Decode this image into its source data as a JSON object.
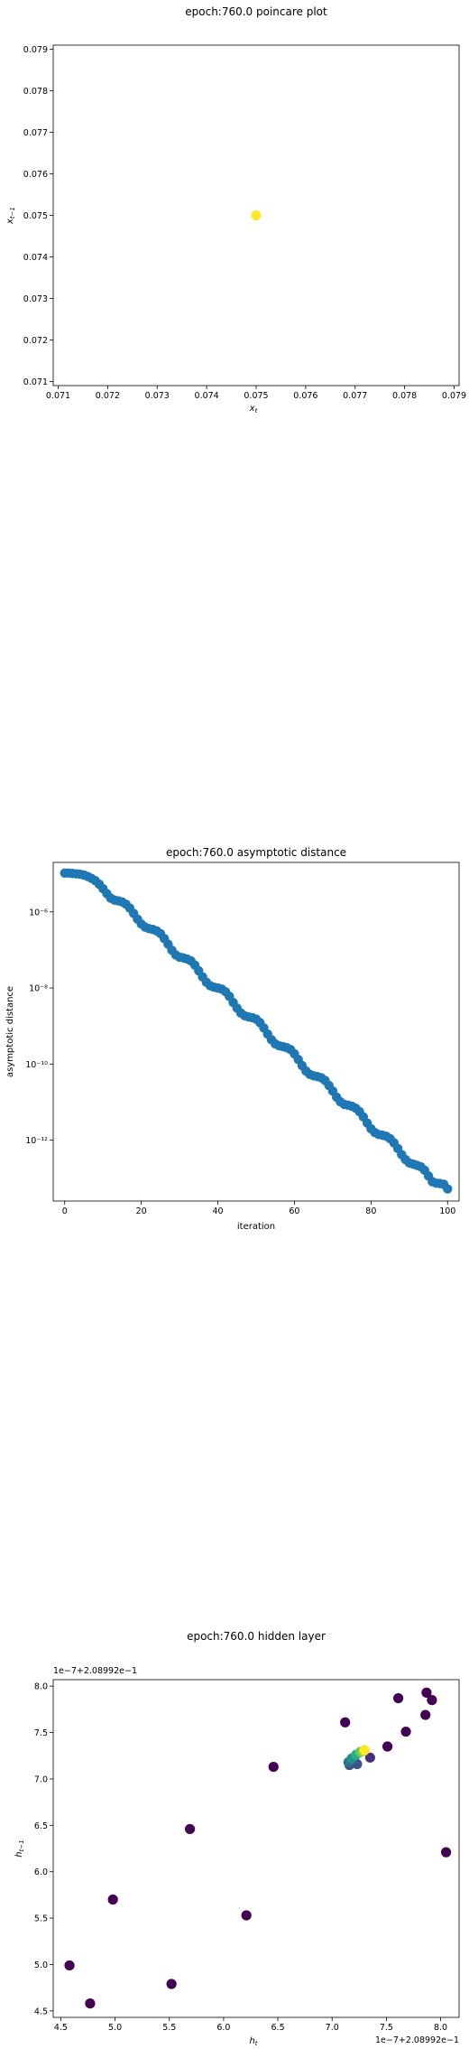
{
  "chart_data": [
    {
      "type": "scatter",
      "title": "epoch:760.0 poincare plot",
      "xlabel_base": "x",
      "xlabel_sub": "t",
      "ylabel_base": "x",
      "ylabel_sub": "t−1",
      "xlim": [
        0.0709,
        0.0791
      ],
      "ylim": [
        0.0709,
        0.0791
      ],
      "xticks": [
        "0.071",
        "0.072",
        "0.073",
        "0.074",
        "0.075",
        "0.076",
        "0.077",
        "0.078",
        "0.079"
      ],
      "yticks": [
        "0.071",
        "0.072",
        "0.073",
        "0.074",
        "0.075",
        "0.076",
        "0.077",
        "0.078",
        "0.079"
      ],
      "points": [
        {
          "x": 0.075,
          "y": 0.075
        }
      ],
      "color": "#fde725"
    },
    {
      "type": "scatter",
      "title": "epoch:760.0 asymptotic distance",
      "xlabel": "iteration",
      "ylabel": "asymptotic distance",
      "scale_y": "log",
      "xlim": [
        -3,
        103
      ],
      "ylim_log10": [
        -13.6,
        -4.7
      ],
      "xticks": [
        "0",
        "20",
        "40",
        "60",
        "80",
        "100"
      ],
      "yticks": [
        "10⁻⁶",
        "10⁻⁸",
        "10⁻¹⁰",
        "10⁻¹²"
      ],
      "color": "#1f77b4",
      "log10_values": [
        -4.98,
        -4.98,
        -4.99,
        -5.0,
        -5.01,
        -5.03,
        -5.07,
        -5.12,
        -5.18,
        -5.27,
        -5.39,
        -5.52,
        -5.64,
        -5.69,
        -5.71,
        -5.74,
        -5.8,
        -5.9,
        -6.04,
        -6.19,
        -6.32,
        -6.4,
        -6.44,
        -6.46,
        -6.5,
        -6.57,
        -6.7,
        -6.85,
        -7.01,
        -7.13,
        -7.19,
        -7.21,
        -7.24,
        -7.29,
        -7.4,
        -7.55,
        -7.71,
        -7.85,
        -7.94,
        -7.98,
        -8.0,
        -8.03,
        -8.1,
        -8.22,
        -8.38,
        -8.53,
        -8.66,
        -8.73,
        -8.76,
        -8.78,
        -8.82,
        -8.91,
        -9.05,
        -9.21,
        -9.36,
        -9.47,
        -9.52,
        -9.54,
        -9.57,
        -9.62,
        -9.73,
        -9.88,
        -10.04,
        -10.18,
        -10.27,
        -10.31,
        -10.33,
        -10.36,
        -10.43,
        -10.56,
        -10.71,
        -10.87,
        -10.99,
        -11.06,
        -11.08,
        -11.11,
        -11.16,
        -11.25,
        -11.39,
        -11.55,
        -11.7,
        -11.8,
        -11.85,
        -11.87,
        -11.9,
        -11.96,
        -12.07,
        -12.22,
        -12.38,
        -12.51,
        -12.6,
        -12.63,
        -12.66,
        -12.7,
        -12.79,
        -12.94,
        -13.09,
        -13.13,
        -13.14,
        -13.16,
        -13.28
      ]
    },
    {
      "type": "scatter",
      "title": "epoch:760.0 hidden layer",
      "xlabel_base": "h",
      "xlabel_sub": "t",
      "ylabel_base": "h",
      "ylabel_sub": "t−1",
      "offset_text_x": "1e−7+2.08992e−1",
      "offset_text_y": "1e−7+2.08992e−1",
      "xlim": [
        4.43,
        8.17
      ],
      "ylim": [
        4.43,
        8.07
      ],
      "xticks": [
        "4.5",
        "5.0",
        "5.5",
        "6.0",
        "6.5",
        "7.0",
        "7.5",
        "8.0"
      ],
      "yticks": [
        "4.5",
        "5.0",
        "5.5",
        "6.0",
        "6.5",
        "7.0",
        "7.5",
        "8.0"
      ],
      "points": [
        {
          "x": 4.58,
          "y": 4.99,
          "c": "#440154"
        },
        {
          "x": 4.77,
          "y": 4.58,
          "c": "#440154"
        },
        {
          "x": 4.98,
          "y": 5.7,
          "c": "#440154"
        },
        {
          "x": 5.52,
          "y": 4.79,
          "c": "#440154"
        },
        {
          "x": 5.69,
          "y": 6.46,
          "c": "#440154"
        },
        {
          "x": 6.21,
          "y": 5.53,
          "c": "#440154"
        },
        {
          "x": 6.46,
          "y": 7.13,
          "c": "#440154"
        },
        {
          "x": 7.12,
          "y": 7.61,
          "c": "#440154"
        },
        {
          "x": 7.61,
          "y": 7.87,
          "c": "#440154"
        },
        {
          "x": 7.87,
          "y": 7.93,
          "c": "#440154"
        },
        {
          "x": 7.92,
          "y": 7.85,
          "c": "#440154"
        },
        {
          "x": 7.86,
          "y": 7.69,
          "c": "#440154"
        },
        {
          "x": 7.68,
          "y": 7.51,
          "c": "#440154"
        },
        {
          "x": 7.51,
          "y": 7.35,
          "c": "#440154"
        },
        {
          "x": 8.05,
          "y": 6.21,
          "c": "#440154"
        },
        {
          "x": 7.35,
          "y": 7.23,
          "c": "#472d7b"
        },
        {
          "x": 7.23,
          "y": 7.16,
          "c": "#3b528b"
        },
        {
          "x": 7.16,
          "y": 7.15,
          "c": "#3b528b"
        },
        {
          "x": 7.15,
          "y": 7.18,
          "c": "#2c728e"
        },
        {
          "x": 7.18,
          "y": 7.22,
          "c": "#21918c"
        },
        {
          "x": 7.22,
          "y": 7.26,
          "c": "#28ae80"
        },
        {
          "x": 7.26,
          "y": 7.29,
          "c": "#5ec962"
        },
        {
          "x": 7.29,
          "y": 7.3,
          "c": "#addc30"
        },
        {
          "x": 7.3,
          "y": 7.31,
          "c": "#fde725"
        }
      ]
    }
  ]
}
